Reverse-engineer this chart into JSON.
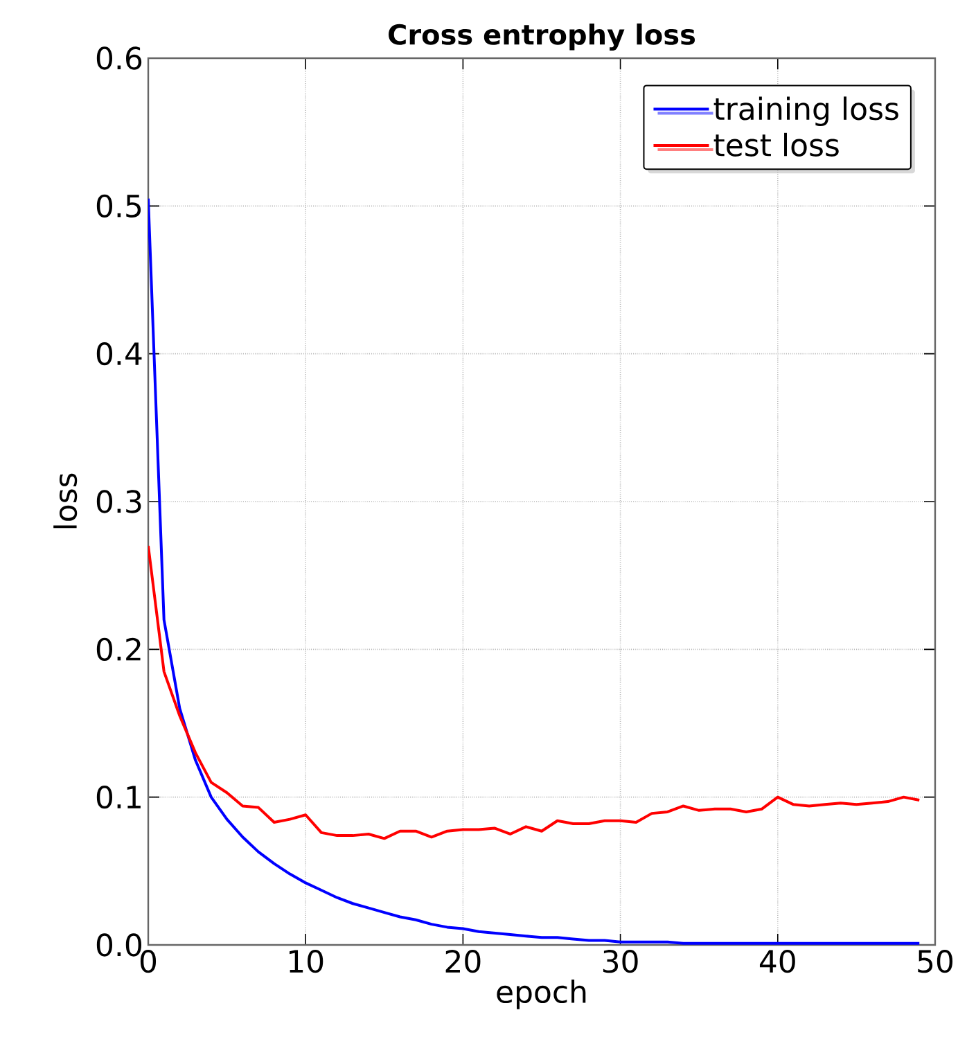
{
  "chart_data": {
    "type": "line",
    "title": "Cross entrophy loss",
    "xlabel": "epoch",
    "ylabel": "loss",
    "xlim": [
      0,
      50
    ],
    "ylim": [
      0,
      0.6
    ],
    "xticks": [
      0,
      10,
      20,
      30,
      40,
      50
    ],
    "yticks": [
      {
        "value": 0,
        "label": "0.0"
      },
      0.1,
      0.2,
      0.3,
      0.4,
      0.5,
      0.6
    ],
    "x": [
      0,
      1,
      2,
      3,
      4,
      5,
      6,
      7,
      8,
      9,
      10,
      11,
      12,
      13,
      14,
      15,
      16,
      17,
      18,
      19,
      20,
      21,
      22,
      23,
      24,
      25,
      26,
      27,
      28,
      29,
      30,
      31,
      32,
      33,
      34,
      35,
      36,
      37,
      38,
      39,
      40,
      41,
      42,
      43,
      44,
      45,
      46,
      47,
      48,
      49
    ],
    "grid": true,
    "legend": "top right",
    "line_style": "solid",
    "series": [
      {
        "name": "training loss",
        "color": "#0000ff",
        "values": [
          0.505,
          0.22,
          0.16,
          0.125,
          0.1,
          0.085,
          0.073,
          0.063,
          0.055,
          0.048,
          0.042,
          0.037,
          0.032,
          0.028,
          0.025,
          0.022,
          0.019,
          0.017,
          0.014,
          0.012,
          0.011,
          0.009,
          0.008,
          0.007,
          0.006,
          0.005,
          0.005,
          0.004,
          0.003,
          0.003,
          0.002,
          0.002,
          0.002,
          0.002,
          0.001,
          0.001,
          0.001,
          0.001,
          0.001,
          0.001,
          0.001,
          0.001,
          0.001,
          0.001,
          0.001,
          0.001,
          0.001,
          0.001,
          0.001,
          0.001
        ]
      },
      {
        "name": "test loss",
        "color": "#ff0000",
        "values": [
          0.27,
          0.185,
          0.155,
          0.13,
          0.11,
          0.103,
          0.094,
          0.093,
          0.083,
          0.085,
          0.088,
          0.076,
          0.074,
          0.074,
          0.075,
          0.072,
          0.077,
          0.077,
          0.073,
          0.077,
          0.078,
          0.078,
          0.079,
          0.075,
          0.08,
          0.077,
          0.084,
          0.082,
          0.082,
          0.084,
          0.084,
          0.083,
          0.089,
          0.09,
          0.094,
          0.091,
          0.092,
          0.092,
          0.09,
          0.092,
          0.1,
          0.095,
          0.094,
          0.095,
          0.096,
          0.095,
          0.096,
          0.097,
          0.1,
          0.098
        ]
      }
    ]
  }
}
